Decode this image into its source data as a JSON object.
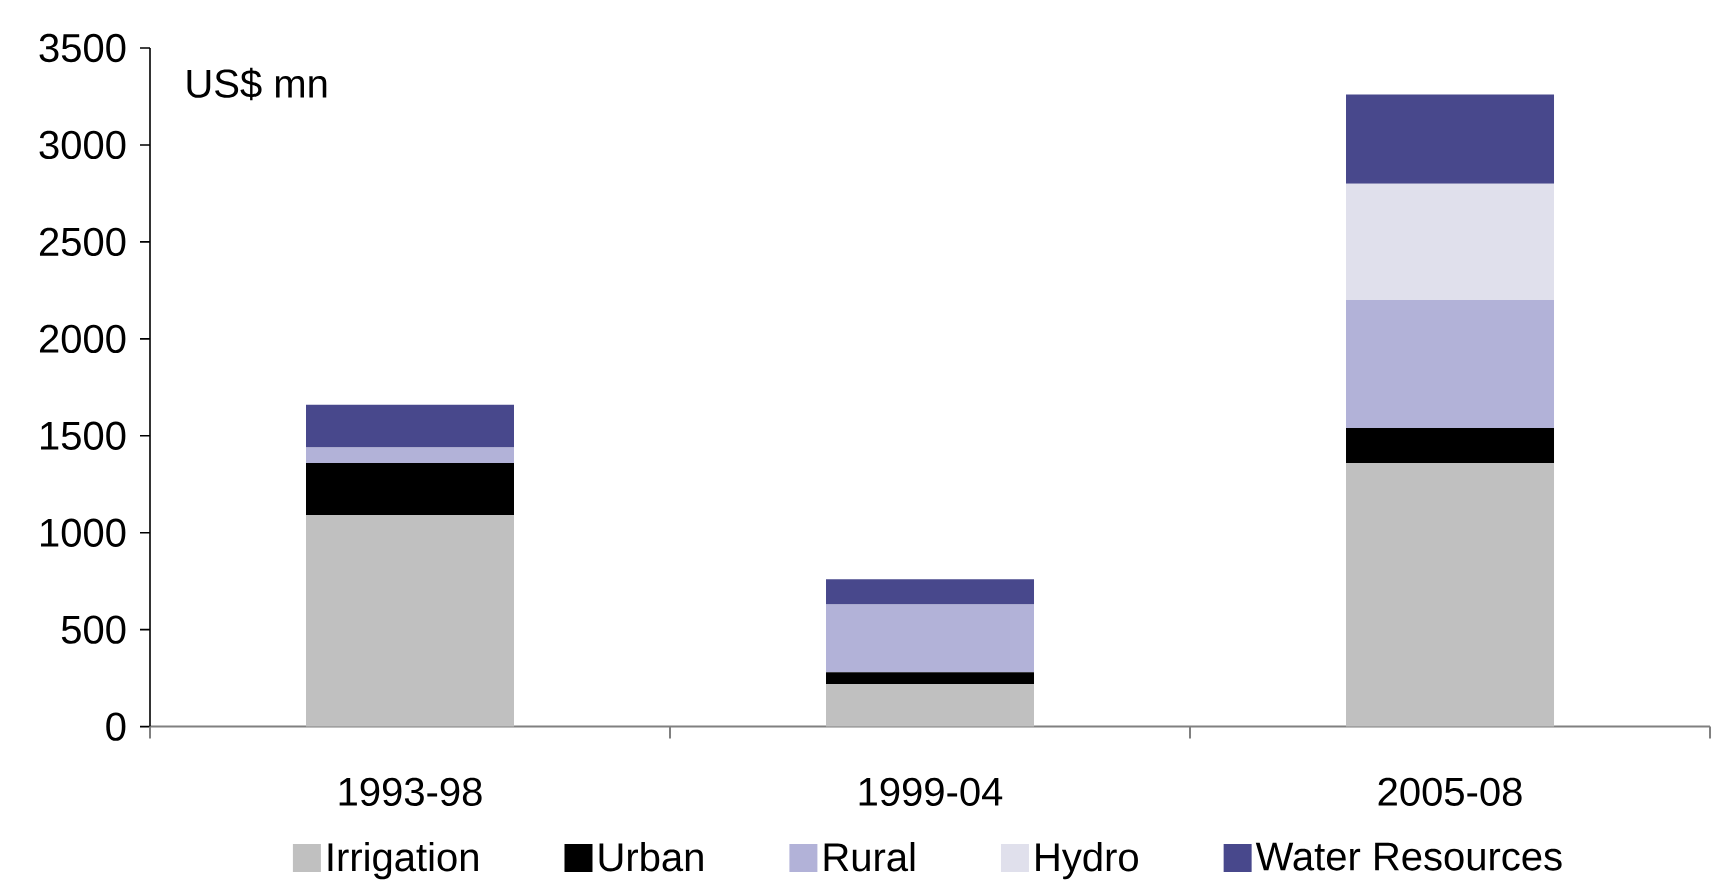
{
  "chart_data": {
    "type": "bar",
    "stacked": true,
    "ylabel": "US$ mn",
    "categories": [
      "1993-98",
      "1999-04",
      "2005-08"
    ],
    "series": [
      {
        "name": "Irrigation",
        "color": "#c0c0c0",
        "values": [
          1090,
          220,
          1360
        ]
      },
      {
        "name": "Urban",
        "color": "#000000",
        "values": [
          270,
          60,
          180
        ]
      },
      {
        "name": "Rural",
        "color": "#b2b2d8",
        "values": [
          80,
          350,
          660
        ]
      },
      {
        "name": "Hydro",
        "color": "#e0e0ec",
        "values": [
          0,
          0,
          600
        ]
      },
      {
        "name": "Water Resources",
        "color": "#48488c",
        "values": [
          220,
          130,
          460
        ]
      }
    ],
    "ylim": [
      0,
      3500
    ],
    "yticks": [
      0,
      500,
      1000,
      1500,
      2000,
      2500,
      3000,
      3500
    ],
    "legend": "bottom"
  }
}
